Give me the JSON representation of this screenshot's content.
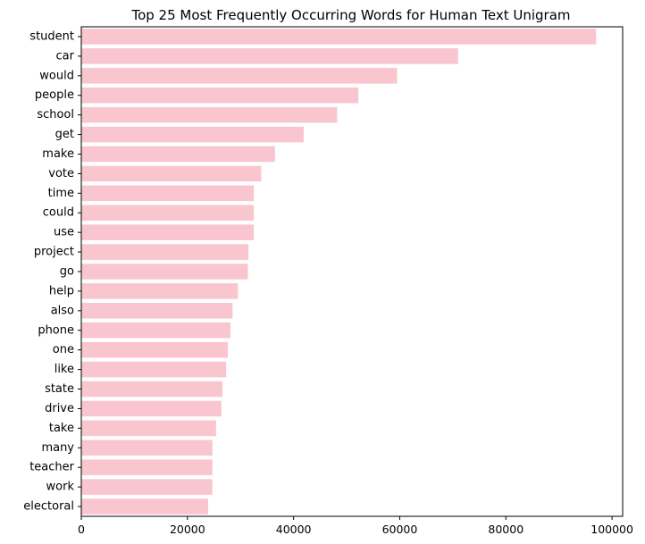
{
  "chart_data": {
    "type": "bar",
    "orientation": "horizontal",
    "title": "Top 25 Most Frequently Occurring Words for Human Text Unigram",
    "xlabel": "",
    "ylabel": "",
    "xlim": [
      0,
      102000
    ],
    "xticks": [
      0,
      20000,
      40000,
      60000,
      80000,
      100000
    ],
    "xtick_labels": [
      "0",
      "20000",
      "40000",
      "60000",
      "80000",
      "100000"
    ],
    "grid": false,
    "bar_color": "#f9c6d0",
    "categories": [
      "student",
      "car",
      "would",
      "people",
      "school",
      "get",
      "make",
      "vote",
      "time",
      "could",
      "use",
      "project",
      "go",
      "help",
      "also",
      "phone",
      "one",
      "like",
      "state",
      "drive",
      "take",
      "many",
      "teacher",
      "work",
      "electoral"
    ],
    "values": [
      97000,
      71000,
      59500,
      52200,
      48200,
      41900,
      36500,
      33900,
      32500,
      32500,
      32500,
      31500,
      31400,
      29500,
      28500,
      28100,
      27600,
      27300,
      26600,
      26400,
      25400,
      24700,
      24700,
      24700,
      23900
    ]
  }
}
